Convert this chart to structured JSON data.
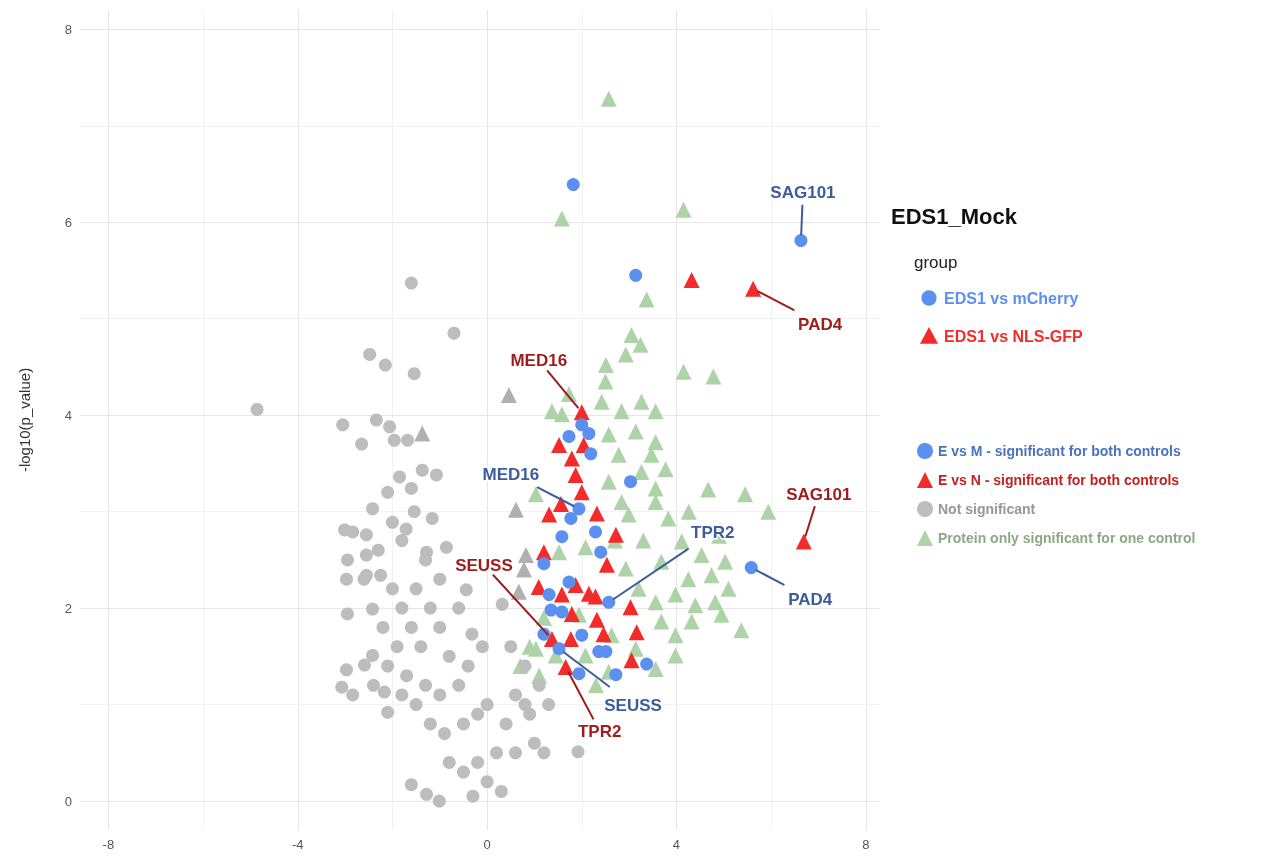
{
  "chart_data": {
    "type": "scatter",
    "title": "EDS1_Mock",
    "ylabel": "-log10(p_value)",
    "xlim": [
      -8.6,
      8.3
    ],
    "ylim": [
      -0.3,
      8.2
    ],
    "xticks": [
      -8,
      {
        "value": -6,
        "label": null
      },
      -4,
      {
        "value": -2,
        "label": null
      },
      0,
      {
        "value": 2,
        "label": null
      },
      4,
      {
        "value": 6,
        "label": null
      },
      8
    ],
    "yticks": [
      0,
      {
        "value": 1,
        "label": null
      },
      2,
      {
        "value": 3,
        "label": null
      },
      4,
      {
        "value": 5,
        "label": null
      },
      6,
      {
        "value": 7,
        "label": null
      },
      8
    ],
    "grid": true,
    "legend": "right",
    "series": [
      {
        "name": "E vs M - significant for both controls",
        "color": "#5b8ff0",
        "marker": "circle",
        "x": [
          1.82,
          3.14,
          6.63,
          5.58,
          2.0,
          1.73,
          2.15,
          2.19,
          3.03,
          1.94,
          1.77,
          1.58,
          2.29,
          2.4,
          1.2,
          1.73,
          1.31,
          1.35,
          1.58,
          2.57,
          1.2,
          2.0,
          2.36,
          2.51,
          3.37,
          2.72,
          1.94,
          1.52
        ],
        "values": [
          6.39,
          5.45,
          5.81,
          2.42,
          3.9,
          3.78,
          3.81,
          3.6,
          3.31,
          3.03,
          2.93,
          2.74,
          2.79,
          2.58,
          2.46,
          2.27,
          2.14,
          1.98,
          1.96,
          2.06,
          1.73,
          1.72,
          1.55,
          1.55,
          1.42,
          1.31,
          1.32,
          1.58
        ]
      },
      {
        "name": "E vs N - significant for both controls",
        "color": "#f42b2b",
        "marker": "triangle",
        "x": [
          5.62,
          4.32,
          6.69,
          2.0,
          1.52,
          2.04,
          1.79,
          1.87,
          1.56,
          1.31,
          2.32,
          2.72,
          1.2,
          2.53,
          1.09,
          1.58,
          1.87,
          2.15,
          2.29,
          3.03,
          1.79,
          2.32,
          2.46,
          3.16,
          1.37,
          1.77,
          3.05,
          1.66,
          2.0
        ],
        "values": [
          5.31,
          5.4,
          2.69,
          4.03,
          3.69,
          3.69,
          3.55,
          3.38,
          3.08,
          2.97,
          2.98,
          2.76,
          2.58,
          2.45,
          2.22,
          2.14,
          2.24,
          2.15,
          2.12,
          2.01,
          1.94,
          1.88,
          1.73,
          1.75,
          1.68,
          1.68,
          1.46,
          1.39,
          3.2
        ]
      },
      {
        "name": "Not significant",
        "color": "#bdbdbd",
        "marker": "circle",
        "x": [
          -4.86,
          -1.6,
          -2.48,
          -2.15,
          -1.54,
          -0.7,
          -3.05,
          -2.34,
          -2.06,
          -2.65,
          -1.96,
          -1.68,
          -1.85,
          -1.37,
          -1.07,
          -2.1,
          -1.6,
          -2.42,
          -1.54,
          -1.16,
          -3.01,
          -2.84,
          -2.55,
          -2.0,
          -1.71,
          -0.86,
          -1.28,
          -2.95,
          -2.55,
          -2.97,
          -2.55,
          -2.25,
          -0.44,
          -2.95,
          -2.42,
          -0.32,
          -2.42,
          -2.59,
          -2.97,
          -3.07,
          -2.84,
          -2.17,
          -2.1,
          -1.6,
          -1.28,
          -1.01,
          -2.0,
          -1.8,
          -1.5,
          -1.2,
          -1.6,
          -2.2,
          -1.9,
          -1.4,
          -1.0,
          -0.8,
          -1.7,
          -1.3,
          -1.0,
          -0.6,
          -1.5,
          -1.2,
          -0.9,
          -0.5,
          -0.2,
          -0.8,
          -0.5,
          -0.2,
          0.0,
          0.2,
          0.4,
          0.6,
          0.8,
          0.6,
          0.3,
          -0.3,
          0.9,
          1.1,
          1.3,
          0.5,
          0.32,
          1.92,
          -0.1,
          -0.4,
          0.0,
          -2.3,
          -2.6,
          -1.8,
          -1.3,
          -1.0,
          -0.6,
          -2.1,
          -1.8,
          -2.4,
          0.8,
          1.0,
          1.2
        ],
        "values": [
          4.06,
          5.37,
          4.63,
          4.52,
          4.43,
          4.85,
          3.9,
          3.95,
          3.88,
          3.7,
          3.74,
          3.74,
          3.36,
          3.43,
          3.38,
          3.2,
          3.24,
          3.03,
          3.0,
          2.93,
          2.81,
          2.79,
          2.76,
          2.89,
          2.82,
          2.63,
          2.58,
          2.5,
          2.55,
          2.3,
          2.34,
          2.34,
          2.19,
          1.94,
          1.99,
          1.73,
          1.51,
          1.41,
          1.36,
          1.18,
          1.1,
          1.13,
          0.92,
          0.17,
          0.07,
          0.0,
          2.2,
          2.0,
          2.2,
          2.0,
          1.8,
          1.8,
          1.6,
          1.6,
          1.8,
          1.5,
          1.3,
          1.2,
          1.1,
          1.2,
          1.0,
          0.8,
          0.7,
          0.8,
          0.9,
          0.4,
          0.3,
          0.4,
          0.2,
          0.5,
          0.8,
          1.1,
          1.4,
          0.5,
          0.1,
          0.05,
          0.9,
          1.2,
          1.0,
          1.6,
          2.04,
          0.51,
          1.6,
          1.4,
          1.0,
          2.6,
          2.3,
          2.7,
          2.5,
          2.3,
          2.0,
          1.4,
          1.1,
          1.2,
          1.0,
          0.6,
          0.5
        ]
      },
      {
        "name": "Protein only significant for one control",
        "color": "#afd3a8",
        "marker": "triangle",
        "x": [
          2.57,
          1.58,
          4.15,
          3.37,
          3.05,
          2.93,
          3.24,
          4.15,
          4.78,
          2.51,
          2.5,
          1.73,
          1.58,
          2.42,
          2.84,
          3.26,
          3.56,
          2.57,
          3.14,
          3.56,
          2.78,
          3.47,
          3.26,
          3.77,
          2.57,
          1.03,
          3.56,
          4.67,
          5.45,
          5.94,
          3.83,
          2.99,
          2.08,
          4.11,
          4.53,
          5.03,
          3.68,
          2.93,
          4.25,
          4.74,
          3.98,
          4.82,
          3.56,
          4.4,
          4.95,
          5.37,
          4.32,
          3.68,
          3.98,
          3.14,
          3.98,
          2.63,
          2.08,
          1.45,
          1.03,
          2.57,
          3.56,
          1.94,
          1.52,
          2.84,
          3.56,
          1.37,
          4.26,
          4.9,
          5.1,
          1.2,
          0.9,
          0.7,
          1.1,
          2.3,
          3.2,
          2.7,
          3.3
        ],
        "values": [
          7.28,
          6.04,
          6.13,
          5.2,
          4.83,
          4.63,
          4.73,
          4.45,
          4.4,
          4.52,
          4.35,
          4.22,
          4.01,
          4.14,
          4.04,
          4.14,
          4.04,
          3.8,
          3.83,
          3.72,
          3.59,
          3.59,
          3.41,
          3.44,
          3.31,
          3.18,
          3.1,
          3.23,
          3.18,
          3.0,
          2.93,
          2.97,
          2.63,
          2.69,
          2.55,
          2.48,
          2.48,
          2.41,
          2.3,
          2.34,
          2.14,
          2.06,
          2.06,
          2.03,
          1.93,
          1.77,
          1.86,
          1.86,
          1.72,
          1.58,
          1.51,
          1.72,
          1.51,
          1.51,
          1.58,
          1.34,
          1.37,
          1.93,
          2.58,
          3.1,
          3.24,
          4.04,
          3.0,
          2.75,
          2.2,
          1.9,
          1.6,
          1.4,
          1.3,
          1.2,
          2.2,
          2.7,
          2.7
        ]
      },
      {
        "color": "#b0b0b0",
        "marker": "triangle",
        "x": [
          0.46,
          -1.37,
          0.61,
          0.82,
          0.78,
          0.67
        ],
        "values": [
          4.21,
          3.81,
          3.02,
          2.55,
          2.4,
          2.17
        ]
      }
    ],
    "annotations": [
      "group",
      "EDS1 vs mCherry",
      "EDS1 vs NLS-GFP",
      {
        "text": "SAG101",
        "x": 6.63,
        "y": 5.81
      },
      {
        "text": "PAD4",
        "x": 5.62,
        "y": 5.31
      },
      {
        "text": "MED16",
        "x": 2.0,
        "y": 4.03
      },
      {
        "text": "MED16",
        "x": 1.94,
        "y": 3.03
      },
      {
        "text": "TPR2",
        "x": 2.57,
        "y": 2.06
      },
      {
        "text": "SAG101",
        "x": 6.69,
        "y": 2.69
      },
      {
        "text": "PAD4",
        "x": 5.58,
        "y": 2.42
      },
      {
        "text": "SEUSS",
        "x": 1.37,
        "y": 1.68
      },
      {
        "text": "SEUSS",
        "x": 1.52,
        "y": 1.58
      },
      {
        "text": "TPR2",
        "x": 1.66,
        "y": 1.39
      }
    ]
  }
}
